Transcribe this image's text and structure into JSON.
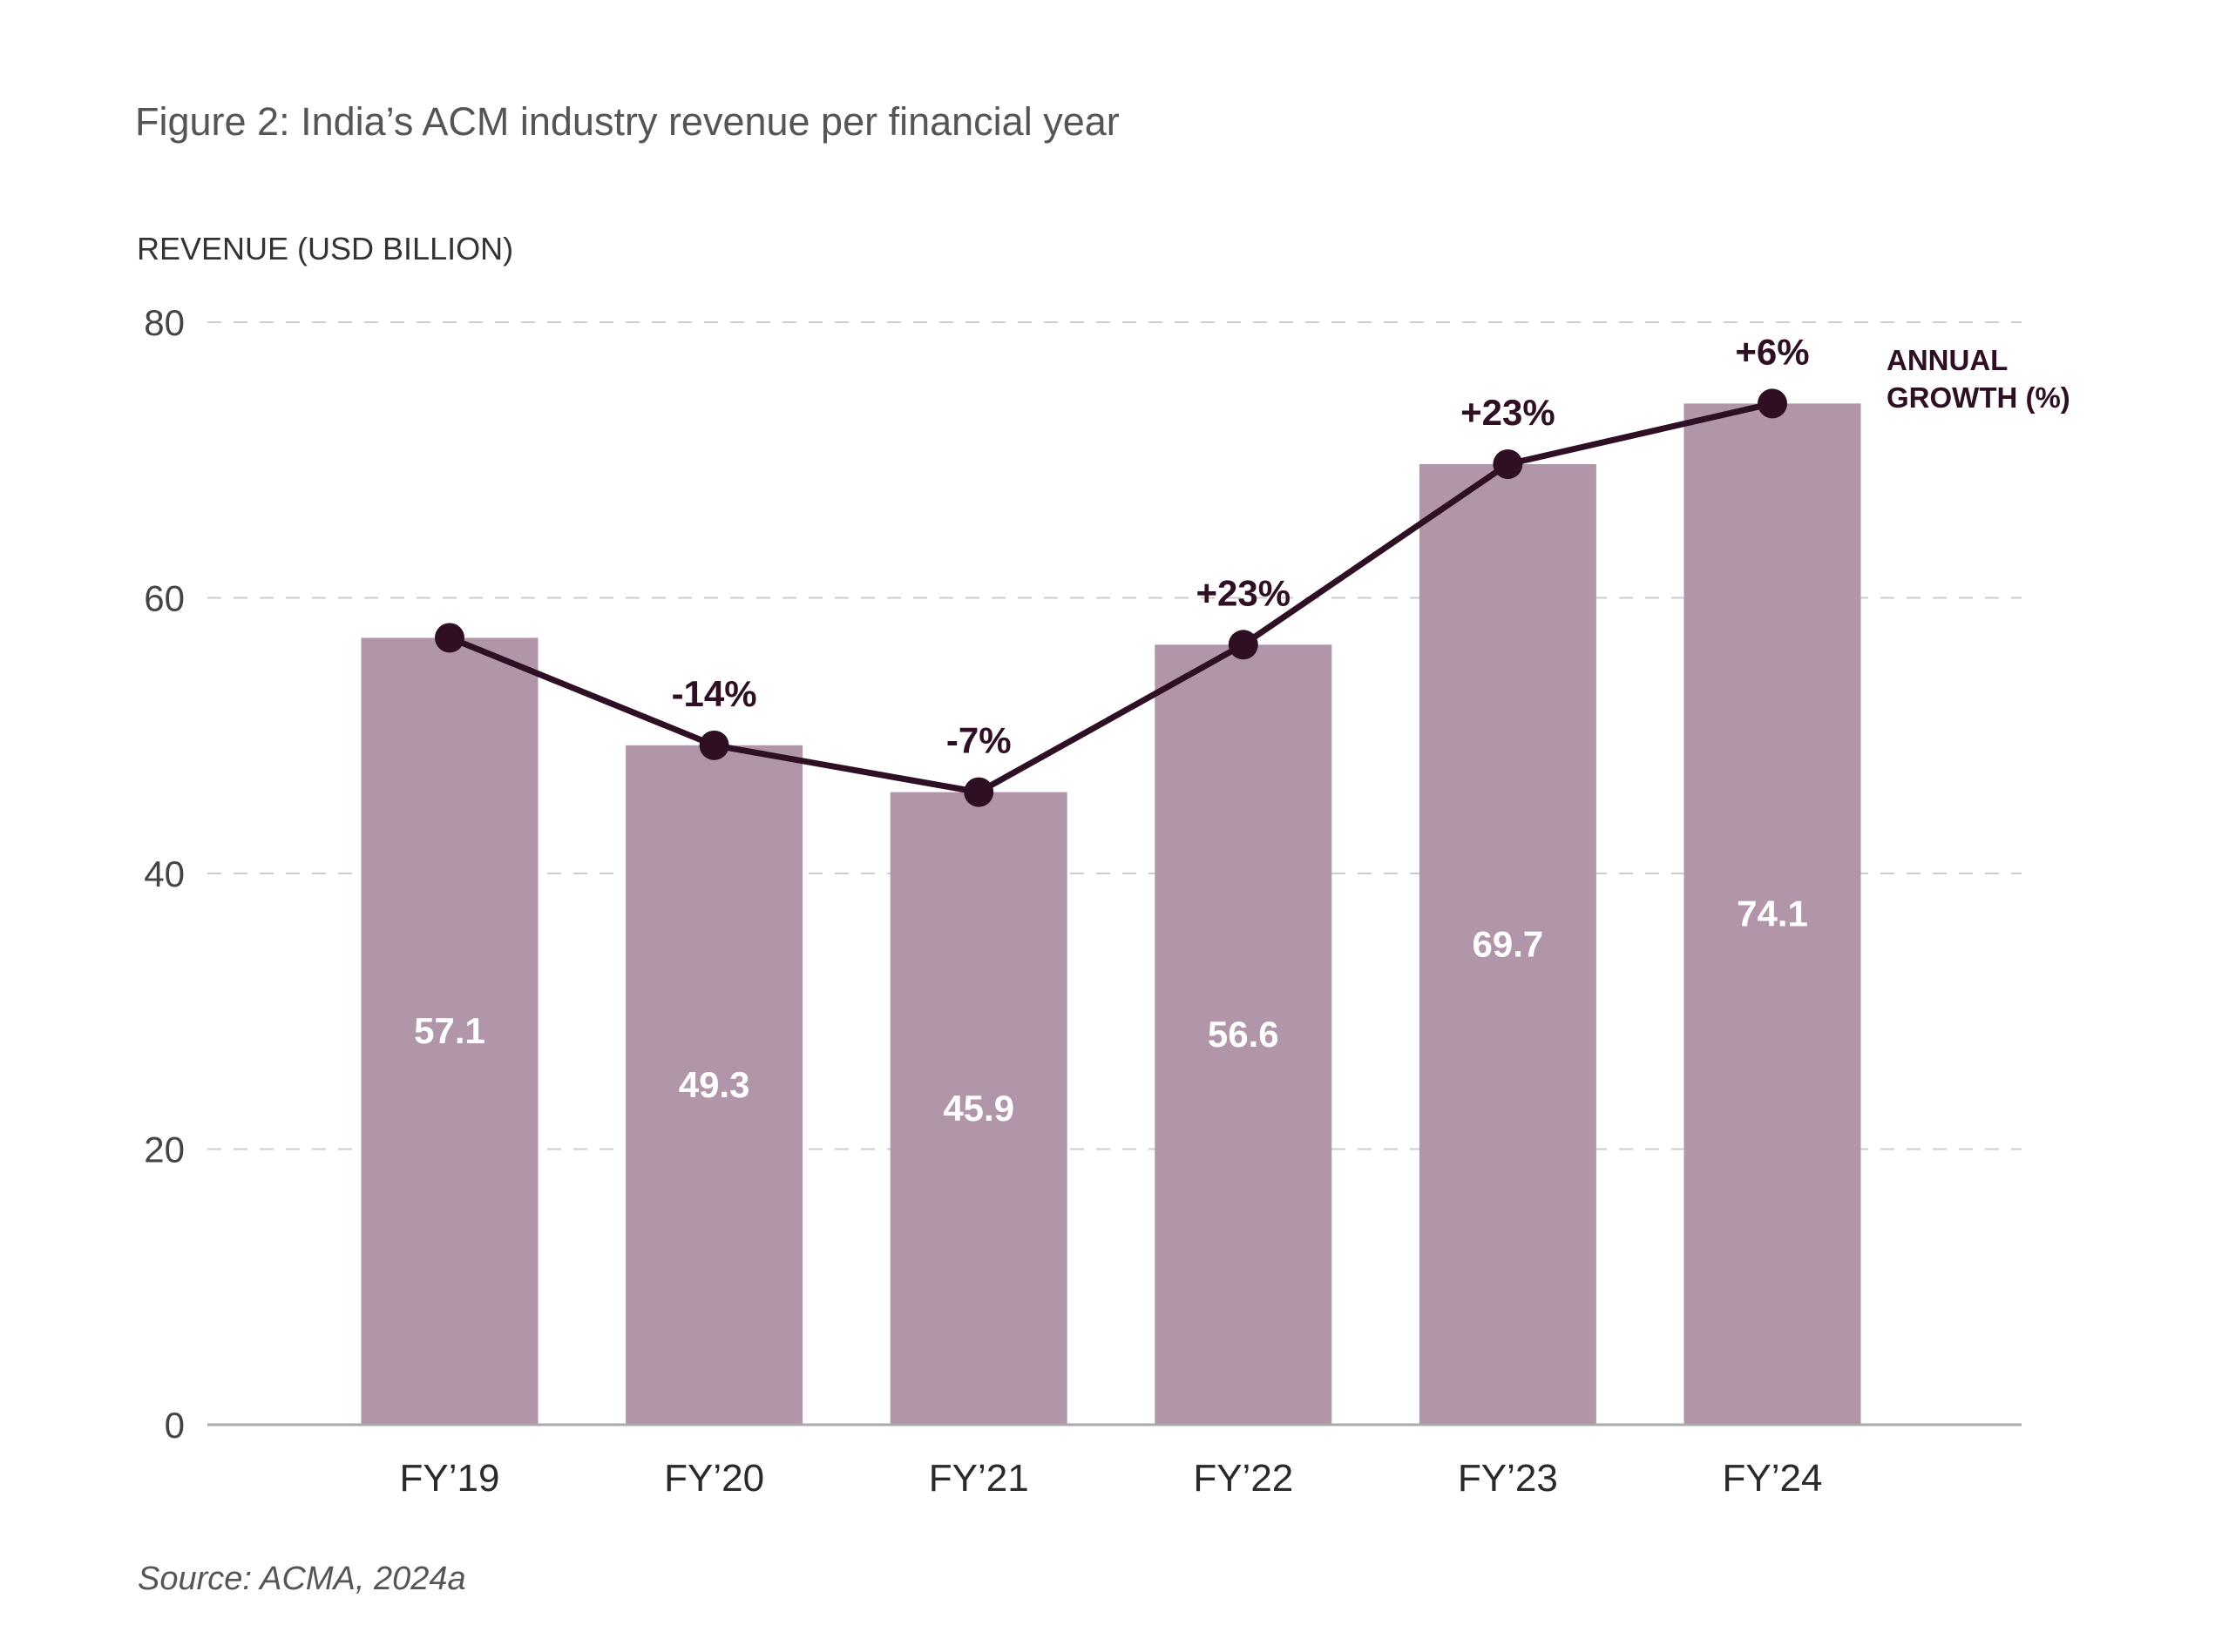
{
  "chart_data": {
    "type": "bar",
    "title": "Figure 2: India’s ACM industry revenue per financial year",
    "ylabel": "REVENUE (USD BILLION)",
    "xlabel": "",
    "ylim": [
      0,
      80
    ],
    "yticks": [
      0,
      20,
      40,
      60,
      80
    ],
    "grid": true,
    "categories": [
      "FY’19",
      "FY’20",
      "FY’21",
      "FY’22",
      "FY’23",
      "FY’24"
    ],
    "values": [
      57.1,
      49.3,
      45.9,
      56.6,
      69.7,
      74.1
    ],
    "value_labels": [
      "57.1",
      "49.3",
      "45.9",
      "56.6",
      "69.7",
      "74.1"
    ],
    "growth_labels": [
      "",
      "-14%",
      "-7%",
      "+23%",
      "+23%",
      "+6%"
    ],
    "growth_legend": [
      "ANNUAL",
      "GROWTH (%)"
    ],
    "source": "Source: ACMA, 2024a",
    "colors": {
      "bar": "#b196aa",
      "line": "#2e0f24",
      "grid": "#cccccc",
      "axis": "#aaaaaa"
    }
  }
}
